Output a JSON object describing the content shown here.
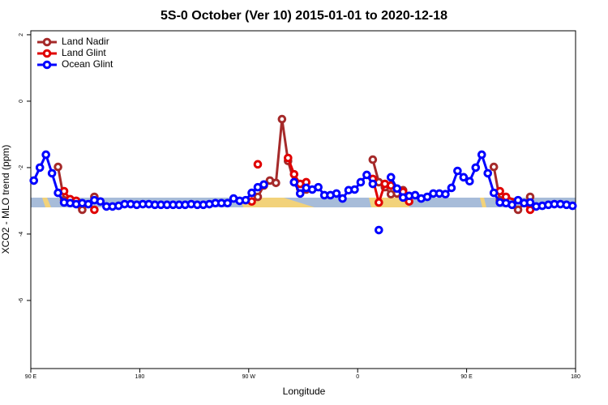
{
  "chart_data": {
    "type": "line",
    "title": "5S-0 October (Ver 10)   2015-01-01 to 2020-12-18",
    "x_label": "Longitude",
    "y_label": "XCO2 - MLO trend (ppm)",
    "xlim": [
      90,
      540
    ],
    "xticks": [
      {
        "value": 90,
        "label": "90 E"
      },
      180,
      {
        "value": 270,
        "label": "90 W"
      },
      {
        "value": 360,
        "label": "0"
      },
      {
        "value": 450,
        "label": "90 E"
      },
      {
        "value": 540,
        "label": "180"
      }
    ],
    "ylim": [
      -8.05,
      2.12
    ],
    "yticks": [
      2,
      0,
      -2,
      -4,
      -6
    ],
    "legend": "top-left",
    "series": [
      {
        "name": "Land Nadir",
        "color": "#a52a2a",
        "x": [
          112.5,
          117.5,
          122.5,
          132.5,
          142.5,
          null,
          277.5,
          282.5,
          287.5,
          292.5,
          297.5,
          302.5,
          307.5,
          312.5,
          317.5,
          null,
          372.5,
          377.5,
          382.5,
          387.5,
          392.5,
          397.5,
          null,
          472.5,
          477.5,
          492.5,
          502.5
        ],
        "values": [
          -1.98,
          -2.98,
          -3.05,
          -3.27,
          -2.88,
          null,
          -2.88,
          -2.54,
          -2.39,
          -2.46,
          -0.54,
          -1.8,
          -2.44,
          -2.63,
          -2.66,
          null,
          -1.76,
          -2.44,
          -2.59,
          -2.8,
          -2.78,
          -2.68,
          null,
          -1.98,
          -2.98,
          -3.27,
          -2.88
        ]
      },
      {
        "name": "Land Glint",
        "color": "#e00000",
        "x": [
          117.5,
          122.5,
          127.5,
          null,
          142.5,
          null,
          272.5,
          null,
          277.5,
          null,
          302.5,
          307.5,
          312.5,
          317.5,
          null,
          372.5,
          377.5,
          382.5,
          387.5,
          397.5,
          402.5,
          null,
          477.5,
          482.5,
          497.5,
          502.5
        ],
        "values": [
          -2.71,
          -2.95,
          -3.0,
          null,
          -3.27,
          null,
          -3.02,
          null,
          -1.9,
          null,
          -1.71,
          -2.2,
          -2.49,
          -2.44,
          null,
          -2.34,
          -3.05,
          -2.49,
          -2.54,
          -2.73,
          -3.02,
          null,
          -2.71,
          -2.88,
          -3.07,
          -3.27
        ]
      },
      {
        "name": "Ocean Glint",
        "color": "#0000ff",
        "x": [
          92.5,
          97.5,
          102.5,
          107.5,
          112.5,
          117.5,
          122.5,
          127.5,
          132.5,
          137.5,
          142.5,
          147.5,
          152.5,
          157.5,
          162.5,
          167.5,
          172.5,
          177.5,
          182.5,
          187.5,
          192.5,
          197.5,
          202.5,
          207.5,
          212.5,
          217.5,
          222.5,
          227.5,
          232.5,
          237.5,
          242.5,
          247.5,
          252.5,
          257.5,
          262.5,
          267.5,
          272.5,
          277.5,
          282.5,
          null,
          307.5,
          312.5,
          317.5,
          322.5,
          327.5,
          332.5,
          337.5,
          342.5,
          347.5,
          352.5,
          357.5,
          362.5,
          367.5,
          372.5,
          null,
          377.5,
          null,
          387.5,
          392.5,
          397.5,
          402.5,
          407.5,
          412.5,
          417.5,
          422.5,
          427.5,
          432.5,
          437.5,
          442.5,
          447.5,
          452.5,
          457.5,
          462.5,
          467.5,
          472.5,
          477.5,
          482.5,
          487.5,
          492.5,
          497.5,
          502.5,
          507.5,
          512.5,
          517.5,
          522.5,
          527.5,
          532.5,
          537.5
        ],
        "values": [
          -2.39,
          -2.0,
          -1.61,
          -2.17,
          -2.76,
          -3.05,
          -3.07,
          -3.1,
          -3.07,
          -3.1,
          -2.98,
          -3.02,
          -3.17,
          -3.17,
          -3.15,
          -3.1,
          -3.1,
          -3.12,
          -3.1,
          -3.1,
          -3.12,
          -3.12,
          -3.12,
          -3.12,
          -3.12,
          -3.12,
          -3.1,
          -3.12,
          -3.12,
          -3.1,
          -3.07,
          -3.07,
          -3.07,
          -2.93,
          -3.0,
          -2.98,
          -2.76,
          -2.59,
          -2.51,
          null,
          -2.44,
          -2.78,
          -2.61,
          -2.66,
          -2.59,
          -2.83,
          -2.83,
          -2.78,
          -2.93,
          -2.68,
          -2.66,
          -2.44,
          -2.22,
          -2.49,
          null,
          -3.88,
          null,
          -2.29,
          -2.63,
          -2.9,
          -2.85,
          -2.83,
          -2.93,
          -2.88,
          -2.78,
          -2.78,
          -2.8,
          -2.61,
          -2.1,
          -2.29,
          -2.41,
          -2.0,
          -1.61,
          -2.17,
          -2.76,
          -3.05,
          -3.07,
          -3.12,
          -2.98,
          -3.07,
          -3.05,
          -3.17,
          -3.15,
          -3.12,
          -3.1,
          -3.1,
          -3.12,
          -3.15
        ]
      }
    ]
  }
}
